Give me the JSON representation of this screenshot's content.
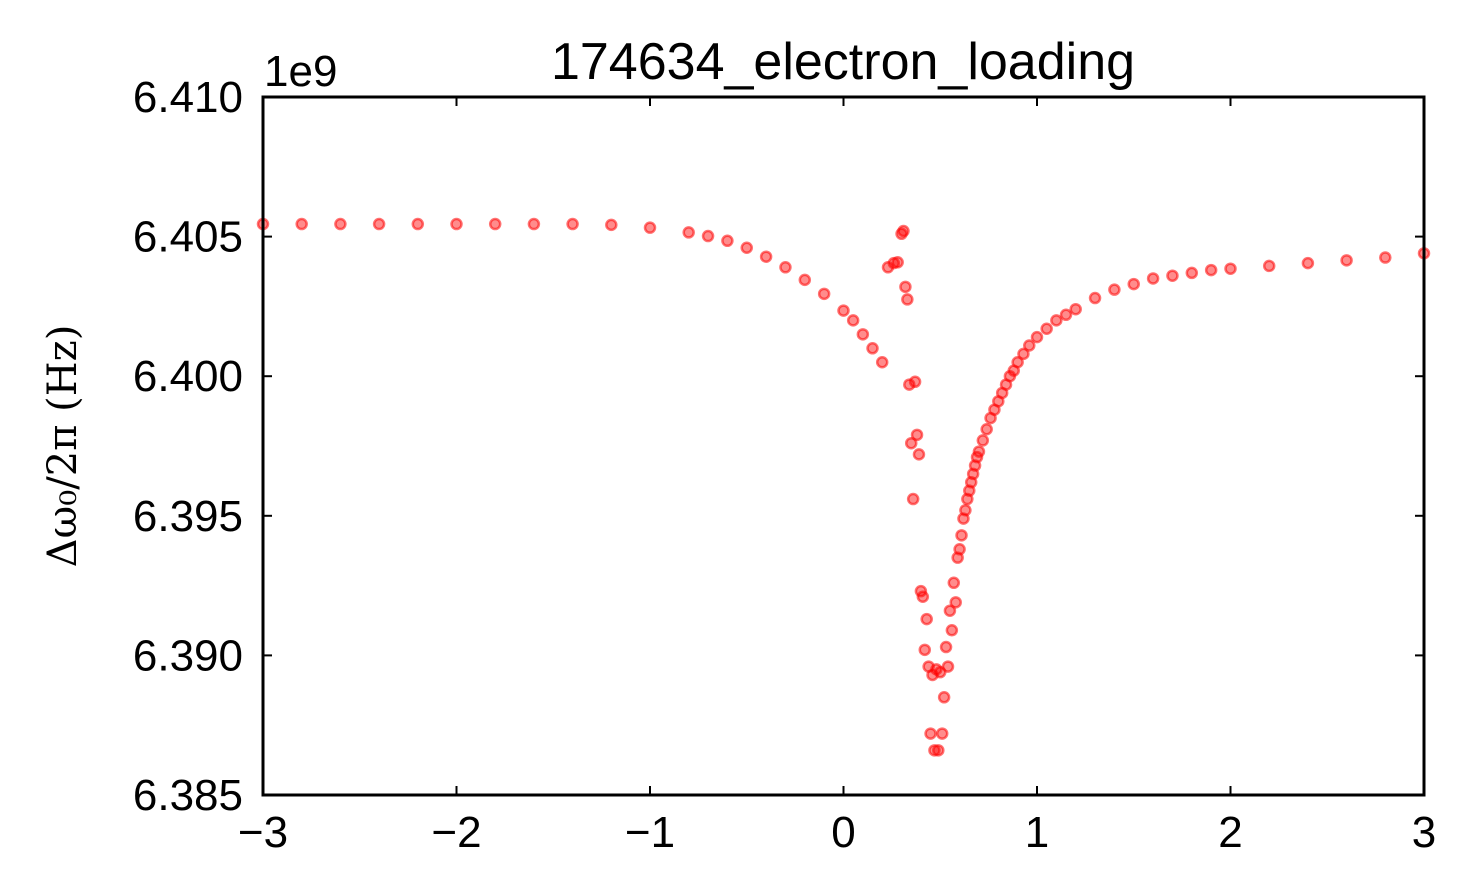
{
  "chart_data": {
    "type": "scatter",
    "title": "174634_electron_loading",
    "xlabel": "",
    "ylabel": "Δω₀/2π (Hz)",
    "y_offset_label": "1e9",
    "xlim": [
      -3,
      3
    ],
    "ylim": [
      6.385,
      6.41
    ],
    "x_ticks": [
      -3,
      -2,
      -1,
      0,
      1,
      2,
      3
    ],
    "x_tick_labels": [
      "−3",
      "−2",
      "−1",
      "0",
      "1",
      "2",
      "3"
    ],
    "y_ticks": [
      6.385,
      6.39,
      6.395,
      6.4,
      6.405,
      6.41
    ],
    "y_tick_labels": [
      "6.385",
      "6.390",
      "6.395",
      "6.400",
      "6.405",
      "6.410"
    ],
    "grid": false,
    "marker_color": "#ff0000",
    "series": [
      {
        "x": [
          -3.0,
          -2.8,
          -2.6,
          -2.4,
          -2.2,
          -2.0,
          -1.8,
          -1.6,
          -1.4,
          -1.2,
          -1.0,
          -0.8,
          -0.7,
          -0.6,
          -0.5,
          -0.4,
          -0.3,
          -0.2,
          -0.1,
          0.0,
          0.05,
          0.1,
          0.15,
          0.2,
          0.23,
          0.26,
          0.28,
          0.3,
          0.31,
          0.32,
          0.33,
          0.34,
          0.35,
          0.36,
          0.37,
          0.38,
          0.39,
          0.4,
          0.41,
          0.42,
          0.43,
          0.44,
          0.45,
          0.46,
          0.47,
          0.48,
          0.49,
          0.5,
          0.51,
          0.52,
          0.53,
          0.54,
          0.55,
          0.56,
          0.57,
          0.58,
          0.59,
          0.6,
          0.61,
          0.62,
          0.63,
          0.64,
          0.65,
          0.66,
          0.67,
          0.68,
          0.69,
          0.7,
          0.72,
          0.74,
          0.76,
          0.78,
          0.8,
          0.82,
          0.84,
          0.86,
          0.88,
          0.9,
          0.93,
          0.96,
          1.0,
          1.05,
          1.1,
          1.15,
          1.2,
          1.3,
          1.4,
          1.5,
          1.6,
          1.7,
          1.8,
          1.9,
          2.0,
          2.2,
          2.4,
          2.6,
          2.8,
          3.0
        ],
        "y": [
          6.40545,
          6.40545,
          6.40545,
          6.40545,
          6.40545,
          6.40545,
          6.40545,
          6.40545,
          6.40545,
          6.40542,
          6.40532,
          6.40515,
          6.40502,
          6.40485,
          6.4046,
          6.40428,
          6.4039,
          6.40345,
          6.40295,
          6.40235,
          6.402,
          6.4015,
          6.401,
          6.4005,
          6.4039,
          6.40405,
          6.40408,
          6.4051,
          6.4052,
          6.4032,
          6.40275,
          6.3997,
          6.3976,
          6.3956,
          6.3998,
          6.3979,
          6.3972,
          6.3923,
          6.3921,
          6.3902,
          6.3913,
          6.3896,
          6.3872,
          6.3893,
          6.3866,
          6.3895,
          6.3866,
          6.3894,
          6.3872,
          6.3885,
          6.3903,
          6.3896,
          6.3916,
          6.3909,
          6.3926,
          6.3919,
          6.3935,
          6.3938,
          6.3943,
          6.3949,
          6.3952,
          6.3956,
          6.3959,
          6.3962,
          6.3965,
          6.3968,
          6.3971,
          6.3973,
          6.3977,
          6.3981,
          6.3985,
          6.3988,
          6.3991,
          6.3994,
          6.3997,
          6.4,
          6.4002,
          6.4005,
          6.4008,
          6.4011,
          6.4014,
          6.4017,
          6.402,
          6.4022,
          6.4024,
          6.4028,
          6.4031,
          6.4033,
          6.4035,
          6.4036,
          6.4037,
          6.4038,
          6.40385,
          6.40395,
          6.40405,
          6.40415,
          6.40425,
          6.4044
        ]
      }
    ]
  }
}
